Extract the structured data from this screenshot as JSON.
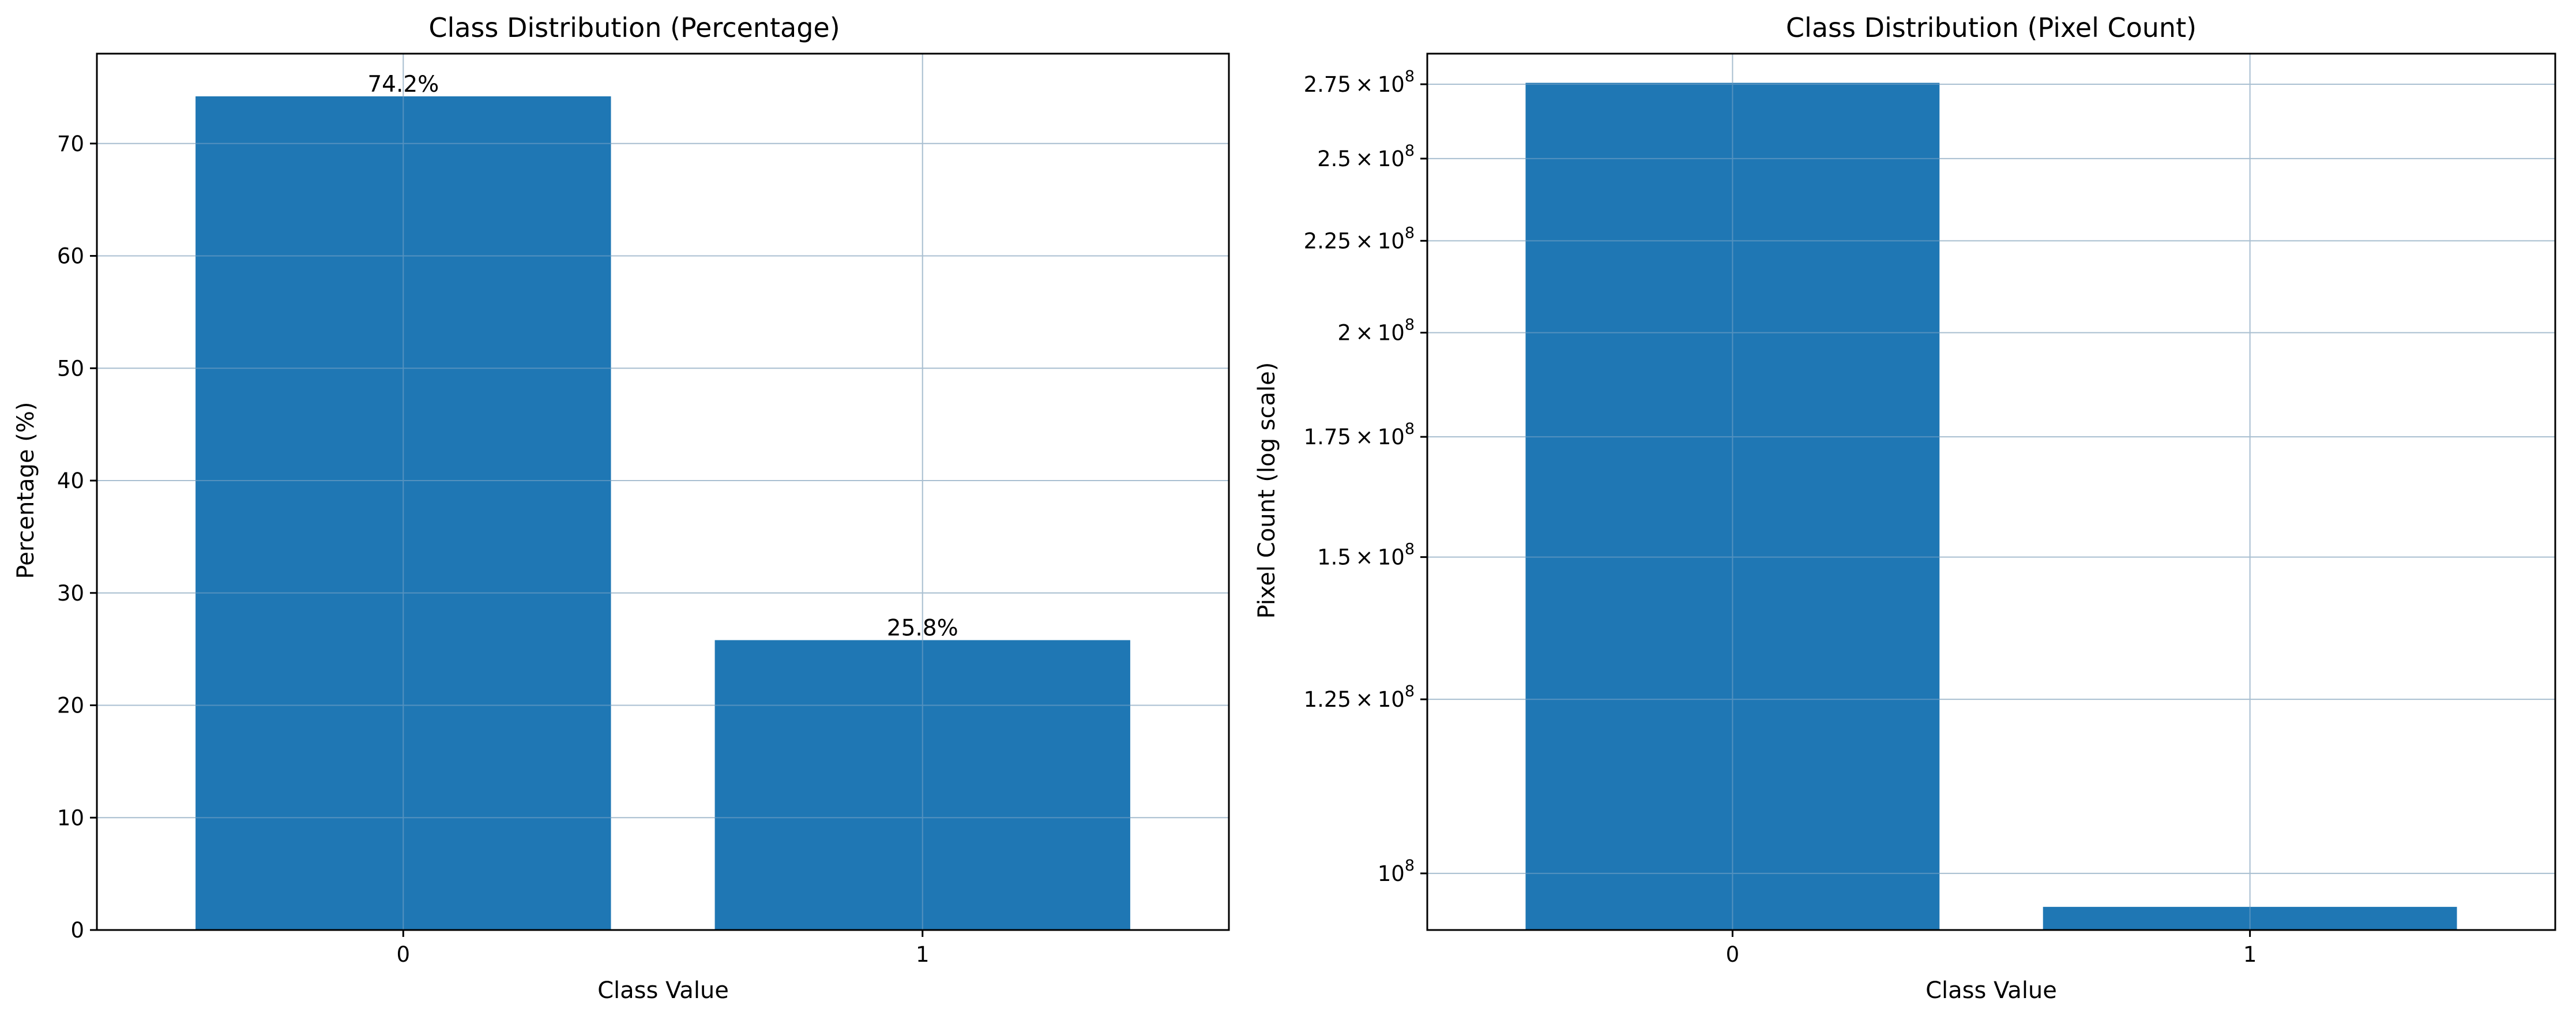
{
  "colors": {
    "bar": "#1f77b4",
    "grid": "#dddddd",
    "axis": "#000000",
    "background": "#ffffff"
  },
  "chart_data": [
    {
      "type": "bar",
      "title": "Class Distribution (Percentage)",
      "xlabel": "Class Value",
      "ylabel": "Percentage (%)",
      "categories": [
        "0",
        "1"
      ],
      "values": [
        74.2,
        25.8
      ],
      "bar_labels": [
        "74.2%",
        "25.8%"
      ],
      "ylim": [
        0,
        78
      ],
      "yscale": "linear",
      "yticks": [
        0,
        10,
        20,
        30,
        40,
        50,
        60,
        70
      ],
      "ytick_labels": [
        "0",
        "10",
        "20",
        "30",
        "40",
        "50",
        "60",
        "70"
      ],
      "grid": true,
      "legend": null
    },
    {
      "type": "bar",
      "title": "Class Distribution (Pixel Count)",
      "xlabel": "Class Value",
      "ylabel": "Pixel Count (log scale)",
      "categories": [
        "0",
        "1"
      ],
      "values": [
        275500000,
        95800000
      ],
      "ylim": [
        93000000,
        286000000
      ],
      "yscale": "log",
      "yticks": [
        100000000,
        125000000,
        150000000,
        175000000,
        200000000,
        225000000,
        250000000,
        275000000
      ],
      "ytick_labels": [
        {
          "mantissa": "",
          "base": "10",
          "exp": "8"
        },
        {
          "mantissa": "1.25",
          "base": "10",
          "exp": "8"
        },
        {
          "mantissa": "1.5",
          "base": "10",
          "exp": "8"
        },
        {
          "mantissa": "1.75",
          "base": "10",
          "exp": "8"
        },
        {
          "mantissa": "2",
          "base": "10",
          "exp": "8"
        },
        {
          "mantissa": "2.25",
          "base": "10",
          "exp": "8"
        },
        {
          "mantissa": "2.5",
          "base": "10",
          "exp": "8"
        },
        {
          "mantissa": "2.75",
          "base": "10",
          "exp": "8"
        }
      ],
      "grid": true,
      "legend": null
    }
  ]
}
